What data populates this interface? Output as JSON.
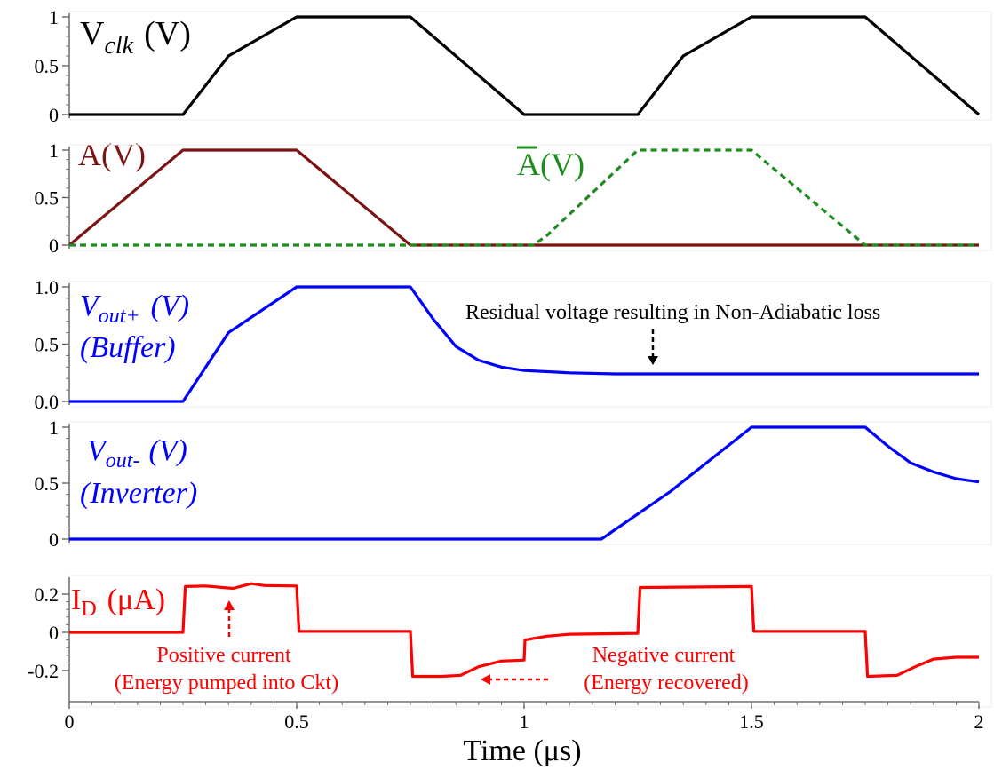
{
  "chart_data": [
    {
      "type": "line",
      "label": "V",
      "label_sub": "clk",
      "label_unit": "(V)",
      "label_color": "#000000",
      "ylim": [
        0,
        1
      ],
      "yticks": [
        {
          "v": 0,
          "t": "0"
        },
        {
          "v": 0.5,
          "t": "0.5"
        },
        {
          "v": 1,
          "t": "1"
        }
      ],
      "series": [
        {
          "color": "#000000",
          "dashed": false,
          "points": [
            [
              0,
              0
            ],
            [
              0.25,
              0
            ],
            [
              0.35,
              0.6
            ],
            [
              0.5,
              1
            ],
            [
              0.75,
              1
            ],
            [
              1.0,
              0
            ],
            [
              1.25,
              0
            ],
            [
              1.35,
              0.6
            ],
            [
              1.5,
              1
            ],
            [
              1.75,
              1
            ],
            [
              2.0,
              0
            ]
          ]
        }
      ]
    },
    {
      "type": "line",
      "labels": [
        {
          "text": "A",
          "overline": false,
          "unit": "(V)",
          "color": "#7b1414"
        },
        {
          "text": "A",
          "overline": true,
          "unit": "(V)",
          "color": "#1f8c1f"
        }
      ],
      "ylim": [
        0,
        1
      ],
      "yticks": [
        {
          "v": 0,
          "t": "0"
        },
        {
          "v": 0.5,
          "t": "0.5"
        },
        {
          "v": 1,
          "t": "1"
        }
      ],
      "series": [
        {
          "color": "#7b1414",
          "dashed": false,
          "points": [
            [
              0,
              0
            ],
            [
              0.25,
              1
            ],
            [
              0.5,
              1
            ],
            [
              0.75,
              0
            ],
            [
              2.0,
              0
            ]
          ]
        },
        {
          "color": "#1f8c1f",
          "dashed": true,
          "points": [
            [
              0,
              0
            ],
            [
              1.02,
              0
            ],
            [
              1.05,
              0.1
            ],
            [
              1.25,
              1
            ],
            [
              1.5,
              1
            ],
            [
              1.75,
              0
            ],
            [
              2.0,
              0
            ]
          ]
        }
      ]
    },
    {
      "type": "line",
      "label": "V",
      "label_sub": "out+",
      "label_unit": "(V)",
      "label_line2": "(Buffer)",
      "label_color": "#0000ff",
      "ylim": [
        0,
        1
      ],
      "yticks": [
        {
          "v": 0,
          "t": "0.0"
        },
        {
          "v": 0.5,
          "t": "0.5"
        },
        {
          "v": 1,
          "t": "1.0"
        }
      ],
      "annotation": "Residual voltage resulting in  Non-Adiabatic loss",
      "series": [
        {
          "color": "#0000ff",
          "dashed": false,
          "points": [
            [
              0,
              0
            ],
            [
              0.25,
              0
            ],
            [
              0.35,
              0.6
            ],
            [
              0.5,
              1
            ],
            [
              0.75,
              1
            ],
            [
              0.8,
              0.72
            ],
            [
              0.85,
              0.48
            ],
            [
              0.9,
              0.36
            ],
            [
              0.95,
              0.3
            ],
            [
              1.0,
              0.27
            ],
            [
              1.1,
              0.25
            ],
            [
              1.2,
              0.24
            ],
            [
              2.0,
              0.24
            ]
          ]
        }
      ]
    },
    {
      "type": "line",
      "label": "V",
      "label_sub": "out-",
      "label_unit": "(V)",
      "label_line2": "(Inverter)",
      "label_color": "#0000ff",
      "ylim": [
        0,
        1
      ],
      "yticks": [
        {
          "v": 0,
          "t": "0"
        },
        {
          "v": 0.5,
          "t": "0.5"
        },
        {
          "v": 1,
          "t": "1"
        }
      ],
      "series": [
        {
          "color": "#0000ff",
          "dashed": false,
          "points": [
            [
              0,
              0
            ],
            [
              1.17,
              0
            ],
            [
              1.32,
              0.42
            ],
            [
              1.5,
              1
            ],
            [
              1.75,
              1
            ],
            [
              1.8,
              0.83
            ],
            [
              1.85,
              0.68
            ],
            [
              1.9,
              0.6
            ],
            [
              1.95,
              0.54
            ],
            [
              2.0,
              0.51
            ]
          ]
        }
      ]
    },
    {
      "type": "line",
      "label": "I",
      "label_sub": "D",
      "label_unit": "(μA)",
      "label_color": "#ff0000",
      "ylim": [
        -0.3,
        0.3
      ],
      "yticks": [
        {
          "v": -0.2,
          "t": "-0.2"
        },
        {
          "v": 0,
          "t": "0"
        },
        {
          "v": 0.2,
          "t": "0.2"
        }
      ],
      "xlim": [
        0,
        2
      ],
      "xticks": [
        {
          "v": 0,
          "t": "0"
        },
        {
          "v": 0.5,
          "t": "0.5"
        },
        {
          "v": 1,
          "t": "1"
        },
        {
          "v": 1.5,
          "t": "1.5"
        },
        {
          "v": 2,
          "t": "2"
        }
      ],
      "xlabel": "Time (μs)",
      "annotation_positive": [
        "Positive current",
        "(Energy pumped into Ckt)"
      ],
      "annotation_negative": [
        "Negative current",
        "(Energy recovered)"
      ],
      "series": [
        {
          "color": "#ff0000",
          "dashed": false,
          "points": [
            [
              0,
              0
            ],
            [
              0.25,
              0
            ],
            [
              0.255,
              0.24
            ],
            [
              0.3,
              0.243
            ],
            [
              0.36,
              0.23
            ],
            [
              0.4,
              0.255
            ],
            [
              0.43,
              0.245
            ],
            [
              0.5,
              0.243
            ],
            [
              0.505,
              0.005
            ],
            [
              0.75,
              0.005
            ],
            [
              0.755,
              -0.23
            ],
            [
              0.82,
              -0.23
            ],
            [
              0.86,
              -0.225
            ],
            [
              0.9,
              -0.18
            ],
            [
              0.95,
              -0.15
            ],
            [
              1.0,
              -0.145
            ],
            [
              1.002,
              -0.04
            ],
            [
              1.05,
              -0.02
            ],
            [
              1.1,
              -0.01
            ],
            [
              1.25,
              -0.005
            ],
            [
              1.255,
              0.235
            ],
            [
              1.5,
              0.24
            ],
            [
              1.505,
              0.005
            ],
            [
              1.75,
              0.005
            ],
            [
              1.755,
              -0.23
            ],
            [
              1.82,
              -0.225
            ],
            [
              1.86,
              -0.18
            ],
            [
              1.9,
              -0.14
            ],
            [
              1.95,
              -0.13
            ],
            [
              2.0,
              -0.13
            ]
          ]
        }
      ]
    }
  ]
}
